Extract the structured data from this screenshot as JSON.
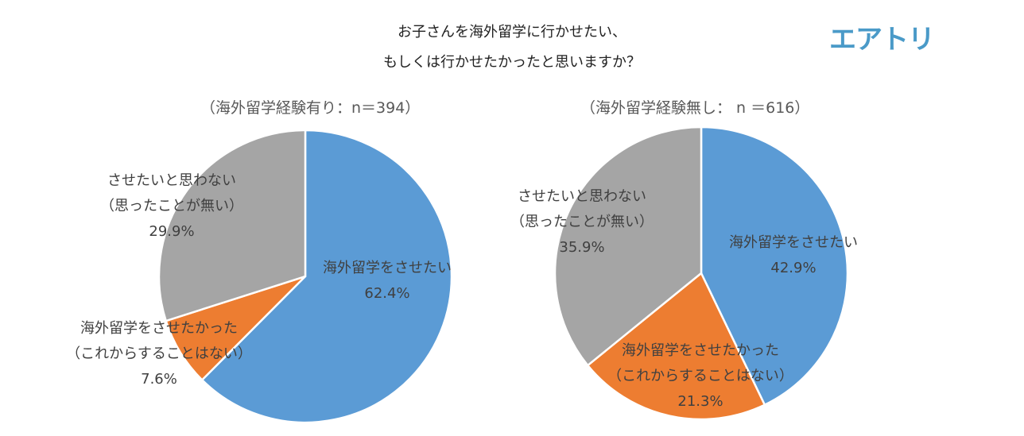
{
  "title_line1": "お子さんを海外留学に行かせたい、",
  "title_line2": "もしくは行かせたかったと思いますか？",
  "logo": "エアトリ",
  "colors": {
    "want": "#5B9BD5",
    "wanted": "#ED7D31",
    "not": "#A5A5A5"
  },
  "chart_data": [
    {
      "type": "pie",
      "subtitle": "（海外留学経験有り：n＝394）",
      "slices": [
        {
          "label": "海外留学をさせたい",
          "label2": "",
          "value": 62.4,
          "display": "62.4%",
          "color": "#5B9BD5"
        },
        {
          "label": "海外留学をさせたかった",
          "label2": "（これからすることはない）",
          "value": 7.6,
          "display": "7.6%",
          "color": "#ED7D31"
        },
        {
          "label": "させたいと思わない",
          "label2": "（思ったことが無い）",
          "value": 29.9,
          "display": "29.9%",
          "color": "#A5A5A5"
        }
      ]
    },
    {
      "type": "pie",
      "subtitle": "（海外留学経験無し： n ＝616）",
      "slices": [
        {
          "label": "海外留学をさせたい",
          "label2": "",
          "value": 42.9,
          "display": "42.9%",
          "color": "#5B9BD5"
        },
        {
          "label": "海外留学をさせたかった",
          "label2": "（これからすることはない）",
          "value": 21.3,
          "display": "21.3%",
          "color": "#ED7D31"
        },
        {
          "label": "させたいと思わない",
          "label2": "（思ったことが無い）",
          "value": 35.9,
          "display": "35.9%",
          "color": "#A5A5A5"
        }
      ]
    }
  ]
}
